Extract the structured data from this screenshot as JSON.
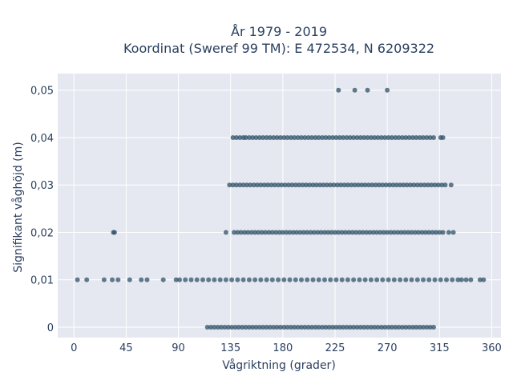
{
  "chart_data": {
    "type": "scatter",
    "title_line1": "År 1979 - 2019",
    "title_line2": "Koordinat (Sweref 99 TM): E 472534, N 6209322",
    "xlabel": "Vågriktning (grader)",
    "ylabel": "Signifikant våghöjd (m)",
    "xlim": [
      -14,
      368
    ],
    "ylim": [
      -0.0022,
      0.0535
    ],
    "xticks": [
      0,
      45,
      90,
      135,
      180,
      225,
      270,
      315,
      360
    ],
    "xtick_labels": [
      "0",
      "45",
      "90",
      "135",
      "180",
      "225",
      "270",
      "315",
      "360"
    ],
    "yticks": [
      0,
      0.01,
      0.02,
      0.03,
      0.04,
      0.05
    ],
    "ytick_labels": [
      "0",
      "0,01",
      "0,02",
      "0,03",
      "0,04",
      "0,05"
    ],
    "grid": true,
    "colors": {
      "plot_bg": "#e5e8f0",
      "grid": "#ffffff",
      "marker": "#2f5168",
      "text": "#2a3f5f"
    },
    "series": [
      {
        "y": 0.05,
        "x": [
          228,
          242,
          253,
          270
        ]
      },
      {
        "y": 0.04,
        "x": [
          137,
          140,
          143,
          146,
          148,
          151,
          154,
          157,
          160,
          163,
          166,
          169,
          172,
          175,
          178,
          181,
          184,
          187,
          190,
          193,
          196,
          199,
          202,
          205,
          208,
          211,
          214,
          217,
          220,
          223,
          226,
          229,
          232,
          235,
          238,
          241,
          244,
          247,
          250,
          253,
          256,
          259,
          262,
          265,
          268,
          271,
          274,
          277,
          280,
          283,
          286,
          289,
          292,
          295,
          298,
          301,
          304,
          307,
          310,
          316,
          318
        ]
      },
      {
        "y": 0.03,
        "x": [
          134,
          137,
          140,
          143,
          146,
          149,
          152,
          155,
          158,
          161,
          164,
          167,
          170,
          173,
          176,
          179,
          182,
          185,
          188,
          191,
          194,
          197,
          200,
          203,
          206,
          209,
          212,
          215,
          218,
          221,
          224,
          227,
          230,
          233,
          236,
          239,
          242,
          245,
          248,
          251,
          254,
          257,
          260,
          263,
          266,
          269,
          272,
          275,
          278,
          281,
          284,
          287,
          290,
          293,
          296,
          299,
          302,
          305,
          308,
          311,
          314,
          317,
          320,
          325
        ]
      },
      {
        "y": 0.02,
        "x": [
          34,
          35,
          131,
          138,
          141,
          144,
          147,
          150,
          153,
          156,
          159,
          162,
          165,
          168,
          171,
          174,
          177,
          180,
          183,
          186,
          189,
          192,
          195,
          198,
          201,
          204,
          207,
          210,
          213,
          216,
          219,
          222,
          225,
          228,
          231,
          234,
          237,
          240,
          243,
          246,
          249,
          252,
          255,
          258,
          261,
          264,
          267,
          270,
          273,
          276,
          279,
          282,
          285,
          288,
          291,
          294,
          297,
          300,
          303,
          306,
          309,
          312,
          315,
          318,
          323,
          327
        ]
      },
      {
        "y": 0.01,
        "x": [
          3,
          11,
          26,
          33,
          38,
          48,
          58,
          63,
          77,
          88,
          91,
          96,
          101,
          106,
          111,
          116,
          121,
          126,
          131,
          136,
          141,
          146,
          151,
          156,
          161,
          166,
          171,
          176,
          181,
          186,
          191,
          196,
          201,
          206,
          211,
          216,
          221,
          226,
          231,
          236,
          241,
          246,
          251,
          256,
          261,
          266,
          271,
          276,
          281,
          286,
          291,
          296,
          301,
          306,
          311,
          316,
          321,
          326,
          331,
          334,
          338,
          342,
          350,
          353
        ]
      },
      {
        "y": 0.0,
        "x": [
          115,
          118,
          121,
          124,
          127,
          130,
          133,
          136,
          139,
          142,
          145,
          148,
          151,
          154,
          157,
          160,
          163,
          166,
          169,
          172,
          175,
          178,
          181,
          184,
          187,
          190,
          193,
          196,
          199,
          202,
          205,
          208,
          211,
          214,
          217,
          220,
          223,
          226,
          229,
          232,
          235,
          238,
          241,
          244,
          247,
          250,
          253,
          256,
          259,
          262,
          265,
          268,
          271,
          274,
          277,
          280,
          283,
          286,
          289,
          292,
          295,
          298,
          301,
          304,
          307,
          310
        ]
      }
    ]
  }
}
